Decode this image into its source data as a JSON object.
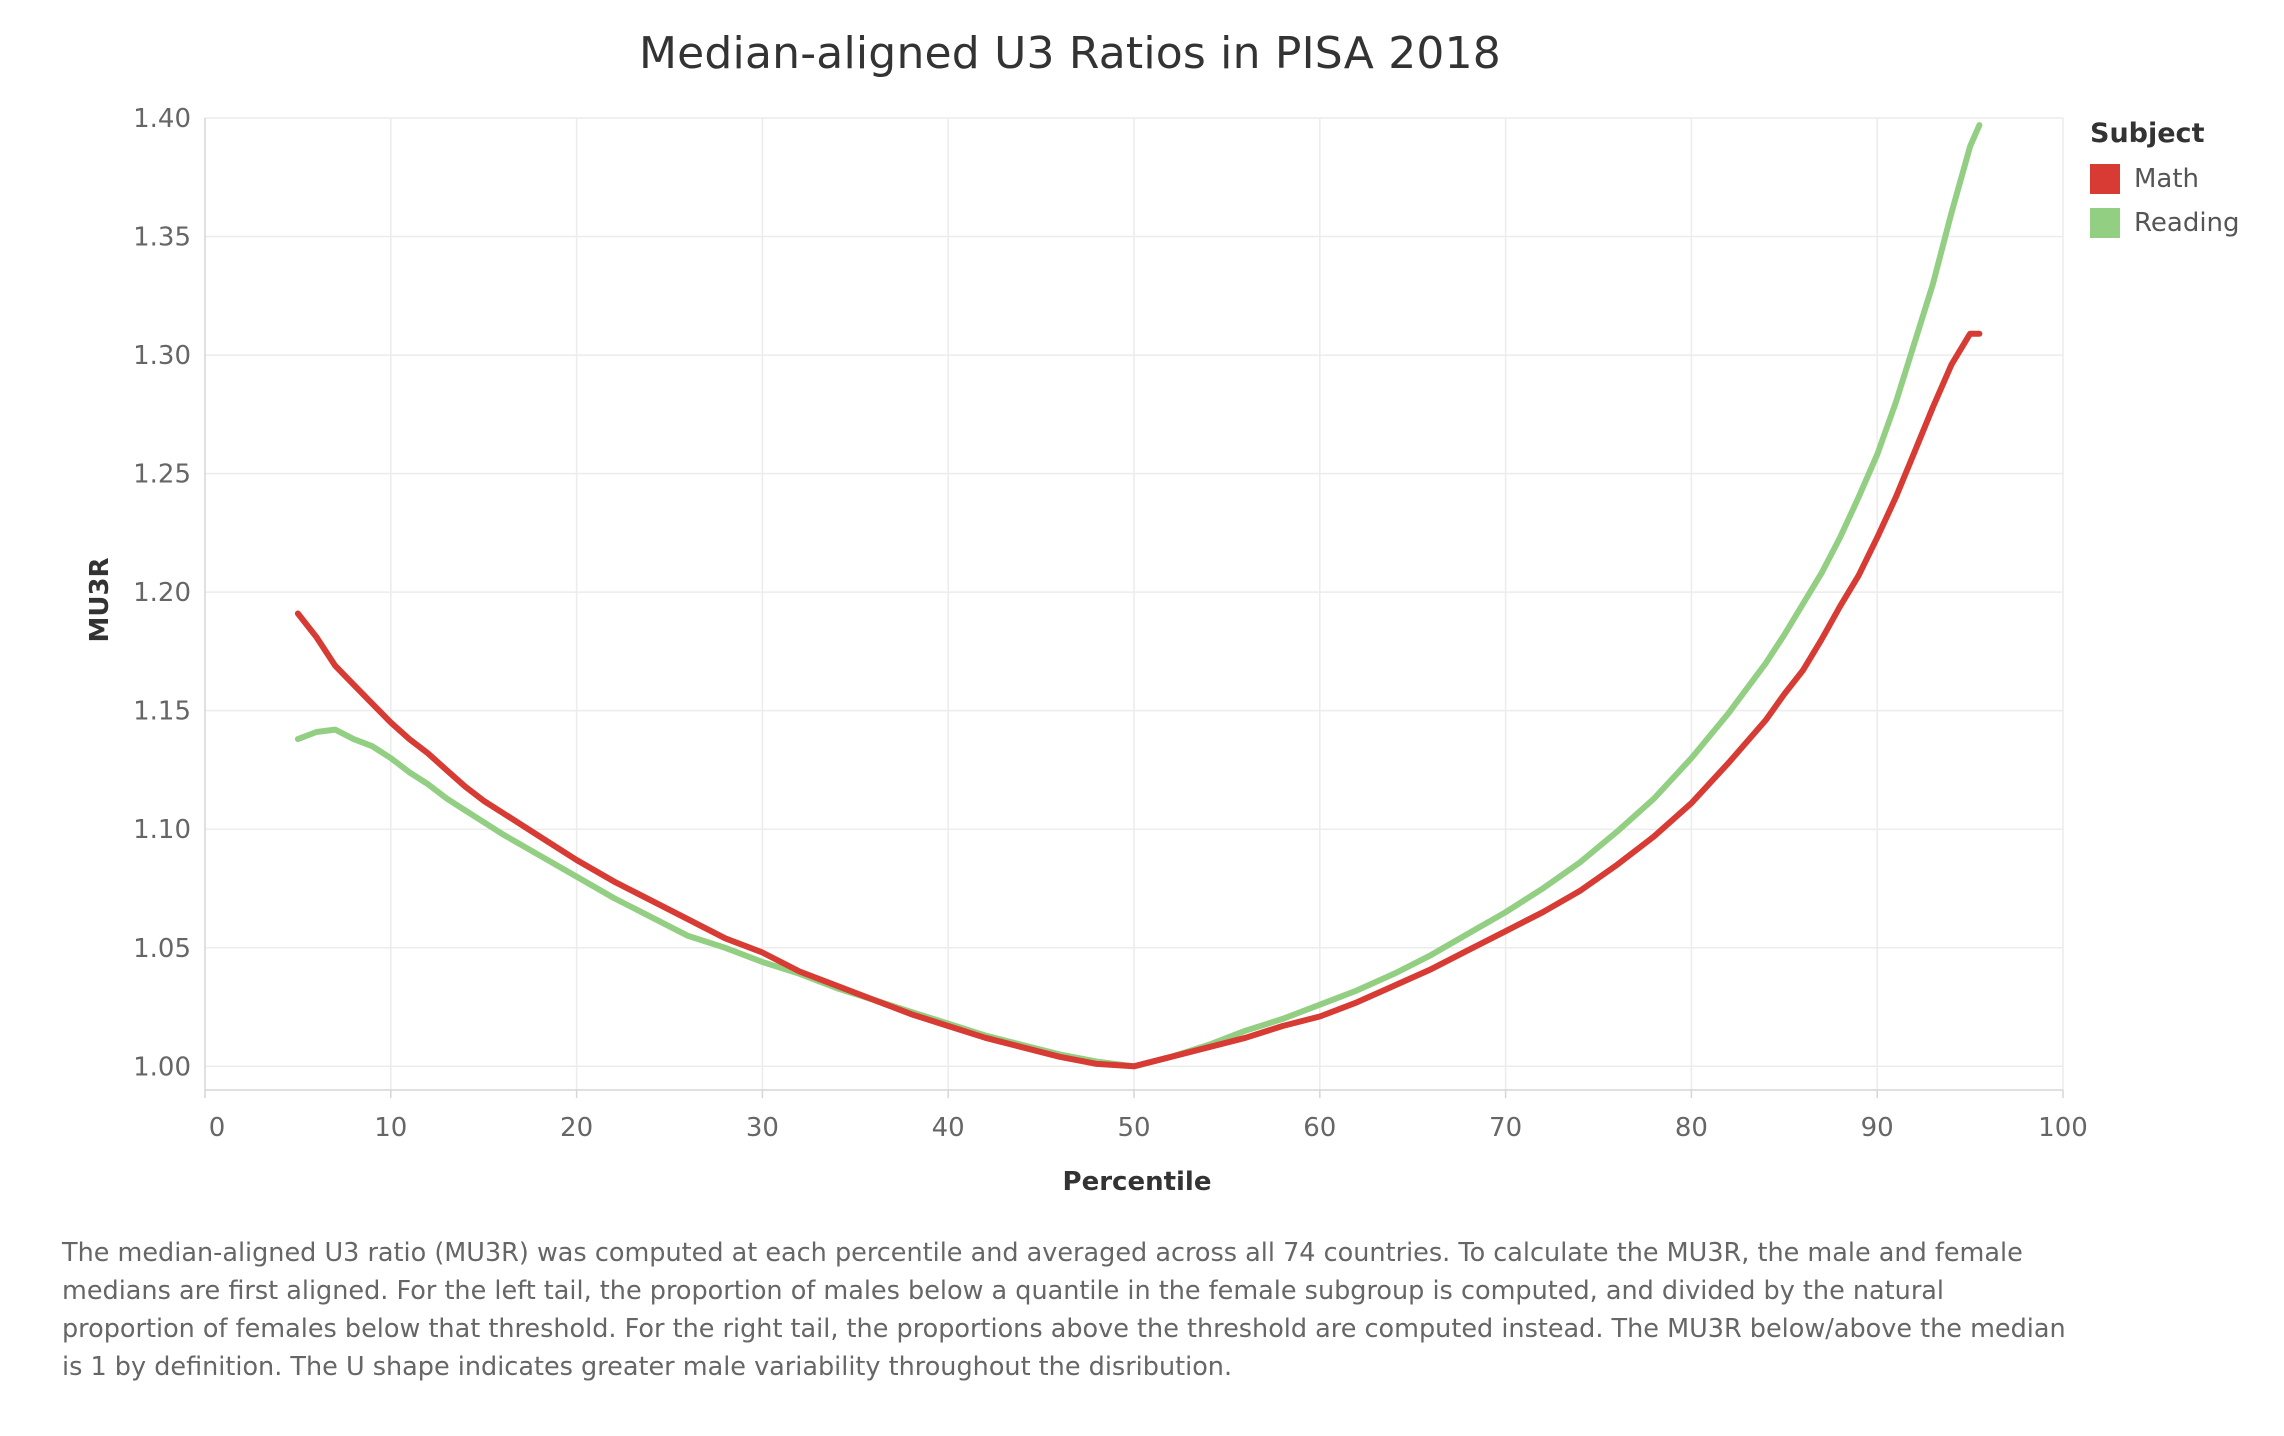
{
  "title": "Median-aligned U3 Ratios in PISA 2018",
  "legend": {
    "title": "Subject",
    "items": [
      {
        "label": "Math",
        "color": "#d73b33"
      },
      {
        "label": "Reading",
        "color": "#93cf83"
      }
    ]
  },
  "caption": "The median-aligned U3 ratio (MU3R) was computed at each percentile and averaged across all 74 countries. To calculate the MU3R,  the male and female medians are first aligned. For the left tail, the proportion of males below a quantile in the female subgroup is computed, and divided by the natural proportion of females below that threshold. For the right tail, the proportions above the threshold are computed instead. The MU3R below/above the median is 1 by definition. The U shape indicates greater male variability throughout the disribution.",
  "chart_data": {
    "type": "line",
    "title": "Median-aligned U3 Ratios in PISA 2018",
    "xlabel": "Percentile",
    "ylabel": "MU3R",
    "xlim": [
      0,
      100
    ],
    "ylim": [
      0.99,
      1.4
    ],
    "xticks": [
      "0",
      "10",
      "20",
      "30",
      "40",
      "50",
      "60",
      "70",
      "80",
      "90",
      "100"
    ],
    "yticks": [
      "1.00",
      "1.05",
      "1.10",
      "1.15",
      "1.20",
      "1.25",
      "1.30",
      "1.35",
      "1.40"
    ],
    "grid": true,
    "legend_position": "top-right",
    "series": [
      {
        "name": "Math",
        "color": "#d73b33",
        "x": [
          5,
          6,
          7,
          8,
          9,
          10,
          11,
          12,
          13,
          14,
          15,
          16,
          18,
          20,
          22,
          24,
          26,
          28,
          30,
          32,
          34,
          36,
          38,
          40,
          42,
          44,
          46,
          48,
          50,
          52,
          54,
          56,
          58,
          60,
          62,
          64,
          66,
          68,
          70,
          72,
          74,
          76,
          78,
          80,
          82,
          84,
          85,
          86,
          87,
          88,
          89,
          90,
          91,
          92,
          93,
          94,
          95,
          95.5
        ],
        "y": [
          1.191,
          1.181,
          1.169,
          1.161,
          1.153,
          1.145,
          1.138,
          1.132,
          1.125,
          1.118,
          1.112,
          1.107,
          1.097,
          1.087,
          1.078,
          1.07,
          1.062,
          1.054,
          1.048,
          1.04,
          1.034,
          1.028,
          1.022,
          1.017,
          1.012,
          1.008,
          1.004,
          1.001,
          1.0,
          1.004,
          1.008,
          1.012,
          1.017,
          1.021,
          1.027,
          1.034,
          1.041,
          1.049,
          1.057,
          1.065,
          1.074,
          1.085,
          1.097,
          1.111,
          1.128,
          1.146,
          1.157,
          1.167,
          1.18,
          1.194,
          1.207,
          1.223,
          1.24,
          1.259,
          1.278,
          1.296,
          1.309,
          1.309
        ]
      },
      {
        "name": "Reading",
        "color": "#93cf83",
        "x": [
          5,
          6,
          7,
          8,
          9,
          10,
          11,
          12,
          13,
          14,
          15,
          16,
          18,
          20,
          22,
          24,
          26,
          28,
          30,
          32,
          34,
          36,
          38,
          40,
          42,
          44,
          46,
          48,
          50,
          52,
          54,
          56,
          58,
          60,
          62,
          64,
          66,
          68,
          70,
          72,
          74,
          76,
          78,
          80,
          82,
          84,
          85,
          86,
          87,
          88,
          89,
          90,
          91,
          92,
          93,
          94,
          95,
          95.5
        ],
        "y": [
          1.138,
          1.141,
          1.142,
          1.138,
          1.135,
          1.13,
          1.124,
          1.119,
          1.113,
          1.108,
          1.103,
          1.098,
          1.089,
          1.08,
          1.071,
          1.063,
          1.055,
          1.05,
          1.044,
          1.039,
          1.033,
          1.028,
          1.023,
          1.018,
          1.013,
          1.009,
          1.005,
          1.002,
          1.0,
          1.004,
          1.009,
          1.015,
          1.02,
          1.026,
          1.032,
          1.039,
          1.047,
          1.056,
          1.065,
          1.075,
          1.086,
          1.099,
          1.113,
          1.13,
          1.149,
          1.17,
          1.182,
          1.195,
          1.208,
          1.223,
          1.24,
          1.258,
          1.28,
          1.305,
          1.33,
          1.36,
          1.388,
          1.397
        ]
      }
    ]
  }
}
